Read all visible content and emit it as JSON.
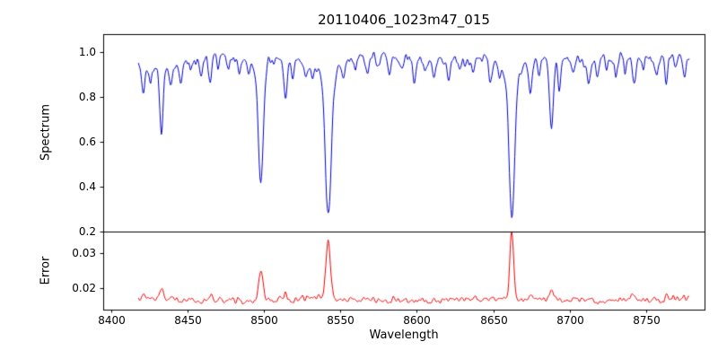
{
  "figure": {
    "title": "20110406_1023m47_015",
    "xlabel": "Wavelength",
    "background_color": "#ffffff",
    "axis_color": "#000000"
  },
  "chart_data": [
    {
      "type": "line",
      "series_name": "spectrum",
      "ylabel": "Spectrum",
      "color": "#0000cc",
      "xlim": [
        8395,
        8788
      ],
      "ylim": [
        0.2,
        1.08
      ],
      "yticks": [
        {
          "value": 0.2,
          "label": "0.2"
        },
        {
          "value": 0.4,
          "label": "0.4"
        },
        {
          "value": 0.6,
          "label": "0.6"
        },
        {
          "value": 0.8,
          "label": "0.8"
        },
        {
          "value": 1.0,
          "label": "1.0"
        }
      ],
      "x_range": [
        8418,
        8778
      ],
      "x_step": 0.5,
      "baseline": 0.97,
      "noise_amplitude": 0.018,
      "grid": false,
      "legend": "none",
      "baseline_waves": [
        {
          "amp": 0.007,
          "period": 90,
          "phase": 0.5
        },
        {
          "amp": 0.004,
          "period": 37,
          "phase": 2.1
        }
      ],
      "absorption_lines": [
        {
          "center": 8498.0,
          "depth": 0.5,
          "sigma": 1.6,
          "wing_depth": 0.05,
          "wing_sigma": 5
        },
        {
          "center": 8542.1,
          "depth": 0.62,
          "sigma": 1.9,
          "wing_depth": 0.08,
          "wing_sigma": 7
        },
        {
          "center": 8662.1,
          "depth": 0.63,
          "sigma": 1.8,
          "wing_depth": 0.08,
          "wing_sigma": 7
        },
        {
          "center": 8430,
          "depth": 0.04,
          "sigma": 14
        },
        {
          "center": 8421,
          "depth": 0.1,
          "sigma": 0.9
        },
        {
          "center": 8426,
          "depth": 0.06,
          "sigma": 0.8
        },
        {
          "center": 8433,
          "depth": 0.3,
          "sigma": 1.1
        },
        {
          "center": 8439,
          "depth": 0.08,
          "sigma": 0.9
        },
        {
          "center": 8446,
          "depth": 0.07,
          "sigma": 0.9
        },
        {
          "center": 8452,
          "depth": 0.05,
          "sigma": 0.8
        },
        {
          "center": 8459,
          "depth": 0.06,
          "sigma": 0.8
        },
        {
          "center": 8465,
          "depth": 0.11,
          "sigma": 1.0
        },
        {
          "center": 8470,
          "depth": 0.07,
          "sigma": 0.8
        },
        {
          "center": 8477,
          "depth": 0.05,
          "sigma": 0.8
        },
        {
          "center": 8484,
          "depth": 0.07,
          "sigma": 0.9
        },
        {
          "center": 8490,
          "depth": 0.05,
          "sigma": 0.8
        },
        {
          "center": 8514,
          "depth": 0.16,
          "sigma": 1.1
        },
        {
          "center": 8519,
          "depth": 0.09,
          "sigma": 0.9
        },
        {
          "center": 8527,
          "depth": 0.07,
          "sigma": 0.9
        },
        {
          "center": 8532,
          "depth": 0.06,
          "sigma": 0.8
        },
        {
          "center": 8552,
          "depth": 0.06,
          "sigma": 0.9
        },
        {
          "center": 8560,
          "depth": 0.05,
          "sigma": 0.8
        },
        {
          "center": 8568,
          "depth": 0.07,
          "sigma": 0.9
        },
        {
          "center": 8575,
          "depth": 0.05,
          "sigma": 0.8
        },
        {
          "center": 8582,
          "depth": 0.08,
          "sigma": 0.9
        },
        {
          "center": 8590,
          "depth": 0.05,
          "sigma": 0.8
        },
        {
          "center": 8598,
          "depth": 0.1,
          "sigma": 1.0
        },
        {
          "center": 8605,
          "depth": 0.05,
          "sigma": 0.8
        },
        {
          "center": 8611,
          "depth": 0.07,
          "sigma": 0.9
        },
        {
          "center": 8621,
          "depth": 0.1,
          "sigma": 1.0
        },
        {
          "center": 8628,
          "depth": 0.05,
          "sigma": 0.8
        },
        {
          "center": 8637,
          "depth": 0.06,
          "sigma": 0.8
        },
        {
          "center": 8648,
          "depth": 0.1,
          "sigma": 1.0
        },
        {
          "center": 8654,
          "depth": 0.06,
          "sigma": 0.8
        },
        {
          "center": 8674,
          "depth": 0.12,
          "sigma": 1.0
        },
        {
          "center": 8680,
          "depth": 0.07,
          "sigma": 0.8
        },
        {
          "center": 8688,
          "depth": 0.3,
          "sigma": 1.2
        },
        {
          "center": 8693,
          "depth": 0.15,
          "sigma": 0.9
        },
        {
          "center": 8702,
          "depth": 0.06,
          "sigma": 0.8
        },
        {
          "center": 8712,
          "depth": 0.11,
          "sigma": 1.0
        },
        {
          "center": 8718,
          "depth": 0.06,
          "sigma": 0.8
        },
        {
          "center": 8724,
          "depth": 0.05,
          "sigma": 0.8
        },
        {
          "center": 8730,
          "depth": 0.08,
          "sigma": 0.9
        },
        {
          "center": 8736,
          "depth": 0.06,
          "sigma": 0.8
        },
        {
          "center": 8742,
          "depth": 0.13,
          "sigma": 1.0
        },
        {
          "center": 8748,
          "depth": 0.06,
          "sigma": 0.8
        },
        {
          "center": 8757,
          "depth": 0.07,
          "sigma": 0.9
        },
        {
          "center": 8763,
          "depth": 0.1,
          "sigma": 0.9
        },
        {
          "center": 8769,
          "depth": 0.06,
          "sigma": 0.8
        },
        {
          "center": 8775,
          "depth": 0.08,
          "sigma": 0.9
        }
      ]
    },
    {
      "type": "line",
      "series_name": "error",
      "ylabel": "Error",
      "color": "#ee0000",
      "xlim": [
        8395,
        8788
      ],
      "ylim": [
        0.014,
        0.036
      ],
      "yticks": [
        {
          "value": 0.02,
          "label": "0.02"
        },
        {
          "value": 0.03,
          "label": "0.03"
        }
      ],
      "xticks": [
        {
          "value": 8400,
          "label": "8400"
        },
        {
          "value": 8450,
          "label": "8450"
        },
        {
          "value": 8500,
          "label": "8500"
        },
        {
          "value": 8550,
          "label": "8550"
        },
        {
          "value": 8600,
          "label": "8600"
        },
        {
          "value": 8650,
          "label": "8650"
        },
        {
          "value": 8700,
          "label": "8700"
        },
        {
          "value": 8750,
          "label": "8750"
        }
      ],
      "x_range": [
        8418,
        8778
      ],
      "x_step": 0.5,
      "baseline": 0.0168,
      "noise_amplitude": 0.0007,
      "grid": false,
      "legend": "none",
      "baseline_waves": [
        {
          "amp": 0.0003,
          "period": 120,
          "phase": 1.0
        }
      ],
      "peaks": [
        {
          "center": 8421,
          "height": 0.0012,
          "sigma": 1.2
        },
        {
          "center": 8433,
          "height": 0.0028,
          "sigma": 1.3
        },
        {
          "center": 8465,
          "height": 0.0012,
          "sigma": 1.2
        },
        {
          "center": 8498,
          "height": 0.0075,
          "sigma": 1.4
        },
        {
          "center": 8514,
          "height": 0.0012,
          "sigma": 1.2
        },
        {
          "center": 8542,
          "height": 0.0165,
          "sigma": 1.5
        },
        {
          "center": 8662,
          "height": 0.019,
          "sigma": 1.2
        },
        {
          "center": 8674,
          "height": 0.0012,
          "sigma": 1.0
        },
        {
          "center": 8688,
          "height": 0.003,
          "sigma": 1.2
        },
        {
          "center": 8712,
          "height": 0.001,
          "sigma": 1.0
        },
        {
          "center": 8742,
          "height": 0.0018,
          "sigma": 1.1
        },
        {
          "center": 8763,
          "height": 0.0012,
          "sigma": 1.0
        }
      ]
    }
  ]
}
